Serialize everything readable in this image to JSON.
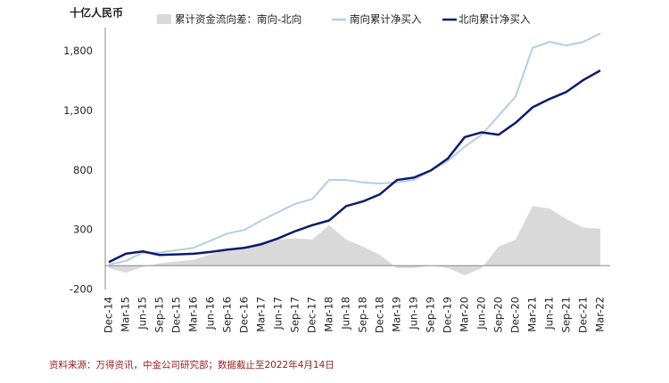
{
  "chart_data": {
    "type": "line",
    "y_label": "十亿人民币",
    "source": "资料来源：万得资讯，中金公司研究部；数据截止至2022年4月14日",
    "categories": [
      "Dec-14",
      "Mar-15",
      "Jun-15",
      "Sep-15",
      "Dec-15",
      "Mar-16",
      "Jun-16",
      "Sep-16",
      "Dec-16",
      "Mar-17",
      "Jun-17",
      "Sep-17",
      "Dec-17",
      "Mar-18",
      "Jun-18",
      "Sep-18",
      "Dec-18",
      "Mar-19",
      "Jun-19",
      "Sep-19",
      "Dec-19",
      "Mar-20",
      "Jun-20",
      "Sep-20",
      "Dec-20",
      "Mar-21",
      "Jun-21",
      "Sep-21",
      "Dec-21",
      "Mar-22"
    ],
    "series": [
      {
        "name": "累计资金流向差：南向-北向",
        "type": "area",
        "color": "#d9d9d9",
        "values": [
          -20,
          -60,
          -10,
          20,
          35,
          50,
          95,
          135,
          150,
          200,
          220,
          230,
          220,
          340,
          220,
          160,
          90,
          -20,
          -20,
          0,
          -20,
          -80,
          -20,
          160,
          220,
          500,
          480,
          390,
          320,
          310
        ]
      },
      {
        "name": "南向累计净买入",
        "type": "line",
        "color": "#b4cde6",
        "values": [
          10,
          40,
          110,
          110,
          130,
          150,
          210,
          270,
          300,
          380,
          450,
          520,
          560,
          720,
          720,
          700,
          690,
          700,
          720,
          800,
          880,
          1000,
          1100,
          1260,
          1420,
          1830,
          1880,
          1850,
          1880,
          1950
        ]
      },
      {
        "name": "北向累计净买入",
        "type": "line",
        "color": "#0d1a6e",
        "values": [
          30,
          100,
          120,
          90,
          95,
          100,
          115,
          135,
          150,
          180,
          230,
          290,
          340,
          380,
          500,
          540,
          600,
          720,
          740,
          800,
          900,
          1080,
          1120,
          1100,
          1200,
          1330,
          1400,
          1460,
          1560,
          1640
        ]
      }
    ],
    "ylim": [
      -200,
      2000
    ],
    "yticks": [
      -200,
      300,
      800,
      {
        "value": 1300,
        "label": "1,300"
      },
      {
        "value": 1800,
        "label": "1,800"
      }
    ]
  }
}
